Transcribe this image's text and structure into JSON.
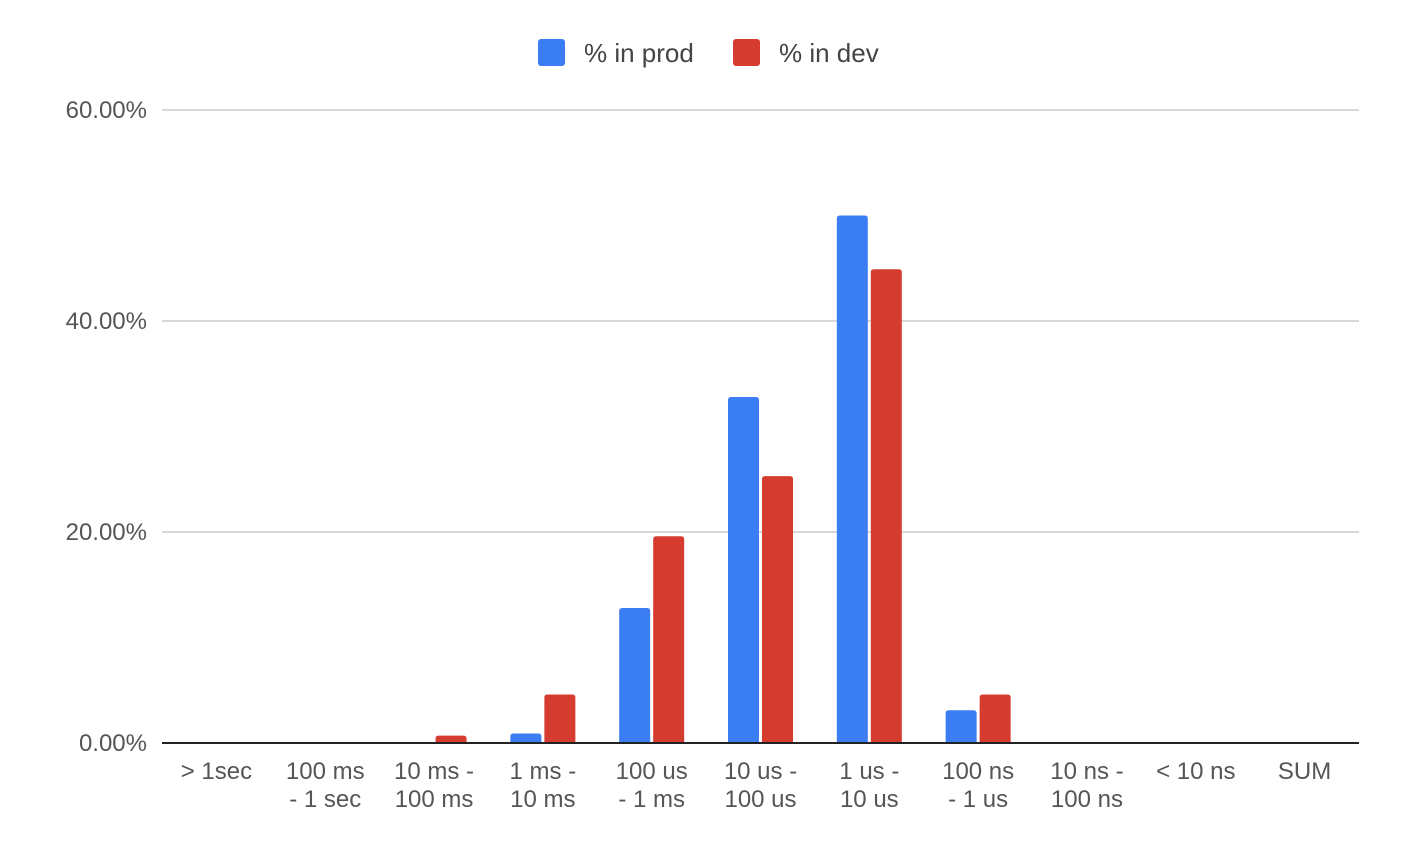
{
  "chart_data": {
    "type": "bar",
    "title": "",
    "xlabel": "",
    "ylabel": "",
    "legend_position": "top",
    "grid": true,
    "ylim": [
      0,
      0.6
    ],
    "y_ticks": [
      {
        "value": 0.0,
        "label": "0.00%"
      },
      {
        "value": 0.2,
        "label": "20.00%"
      },
      {
        "value": 0.4,
        "label": "40.00%"
      },
      {
        "value": 0.6,
        "label": "60.00%"
      }
    ],
    "categories": [
      {
        "lines": [
          "> 1sec"
        ]
      },
      {
        "lines": [
          "100 ms",
          "- 1 sec"
        ]
      },
      {
        "lines": [
          "10 ms -",
          "100 ms"
        ]
      },
      {
        "lines": [
          "1 ms -",
          "10 ms"
        ]
      },
      {
        "lines": [
          "100 us",
          "- 1 ms"
        ]
      },
      {
        "lines": [
          "10 us -",
          "100 us"
        ]
      },
      {
        "lines": [
          "1 us -",
          "10 us"
        ]
      },
      {
        "lines": [
          "100 ns",
          "- 1 us"
        ]
      },
      {
        "lines": [
          "10 ns -",
          "100 ns"
        ]
      },
      {
        "lines": [
          "< 10 ns"
        ]
      },
      {
        "lines": [
          "SUM"
        ]
      }
    ],
    "series": [
      {
        "name": "% in prod",
        "color": "#3B7DF2",
        "values": [
          0,
          0,
          0,
          0.009,
          0.128,
          0.328,
          0.5,
          0.031,
          0,
          0,
          0
        ]
      },
      {
        "name": "% in dev",
        "color": "#D63B2F",
        "values": [
          0,
          0,
          0.007,
          0.046,
          0.196,
          0.253,
          0.449,
          0.046,
          0,
          0,
          0
        ]
      }
    ],
    "axis_color": "#222222",
    "grid_color": "#CCCCCC"
  }
}
